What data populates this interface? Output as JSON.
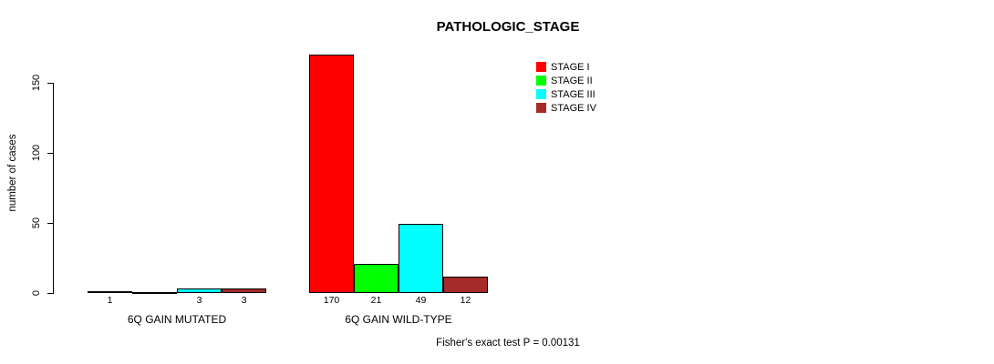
{
  "chart_data": {
    "type": "bar",
    "title": "PATHOLOGIC_STAGE",
    "xlabel": "",
    "ylabel": "number of cases",
    "ylim": [
      0,
      170
    ],
    "yticks": [
      0,
      50,
      100,
      150
    ],
    "grid": false,
    "legend_position": "top-right",
    "categories": [
      "6Q GAIN MUTATED",
      "6Q GAIN WILD-TYPE"
    ],
    "series": [
      {
        "name": "STAGE I",
        "color": "#FF0000",
        "values": [
          1,
          170
        ]
      },
      {
        "name": "STAGE II",
        "color": "#00FF00",
        "values": [
          0,
          21
        ]
      },
      {
        "name": "STAGE III",
        "color": "#00FFFF",
        "values": [
          3,
          49
        ]
      },
      {
        "name": "STAGE IV",
        "color": "#A52A2A",
        "values": [
          3,
          12
        ]
      }
    ],
    "bar_labels": [
      [
        "1",
        "",
        "3",
        "3"
      ],
      [
        "170",
        "21",
        "49",
        "12"
      ]
    ],
    "annotation": "Fisher's exact test P = 0.00131"
  }
}
